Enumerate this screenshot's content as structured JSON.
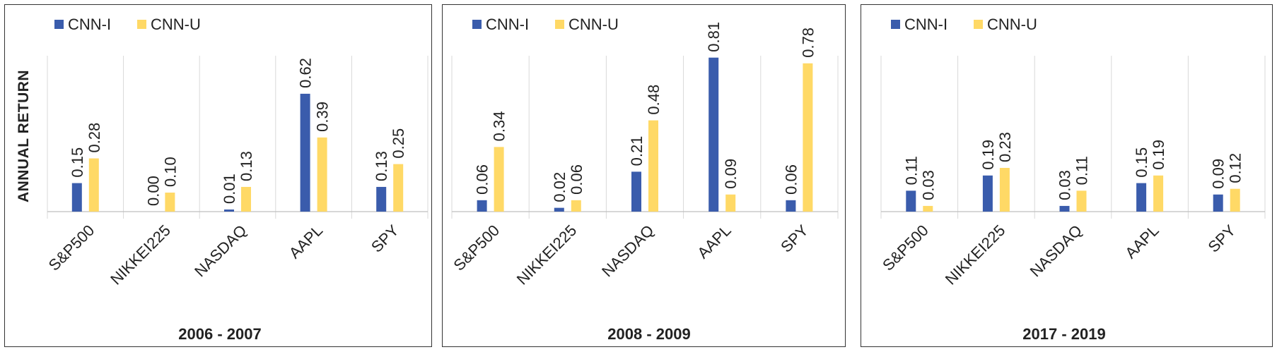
{
  "colors": {
    "cnn_i": "#3A5CAC",
    "cnn_u": "#FFD966",
    "grid": "#D9D9D9",
    "axis": "#BFBFBF"
  },
  "chart_data": [
    {
      "type": "bar",
      "title": "2006 - 2007",
      "ylabel": "ANNUAL RETURN",
      "categories": [
        "S&P500",
        "NIKKEI225",
        "NASDAQ",
        "AAPL",
        "SPY"
      ],
      "series": [
        {
          "name": "CNN-I",
          "values": [
            0.15,
            0.0,
            0.01,
            0.62,
            0.13
          ],
          "labels": [
            "0.15",
            "0.00",
            "0.01",
            "0.62",
            "0.13"
          ]
        },
        {
          "name": "CNN-U",
          "values": [
            0.28,
            0.1,
            0.13,
            0.39,
            0.25
          ],
          "labels": [
            "0.28",
            "0.10",
            "0.13",
            "0.39",
            "0.25"
          ]
        }
      ],
      "ylim": [
        0,
        0.82
      ],
      "legend": "top-left",
      "grid": "vertical"
    },
    {
      "type": "bar",
      "title": "2008 - 2009",
      "ylabel": "",
      "categories": [
        "S&P500",
        "NIKKEI225",
        "NASDAQ",
        "AAPL",
        "SPY"
      ],
      "series": [
        {
          "name": "CNN-I",
          "values": [
            0.06,
            0.02,
            0.21,
            0.81,
            0.06
          ],
          "labels": [
            "0.06",
            "0.02",
            "0.21",
            "0.81",
            "0.06"
          ]
        },
        {
          "name": "CNN-U",
          "values": [
            0.34,
            0.06,
            0.48,
            0.09,
            0.78
          ],
          "labels": [
            "0.34",
            "0.06",
            "0.48",
            "0.09",
            "0.78"
          ]
        }
      ],
      "ylim": [
        0,
        0.82
      ],
      "legend": "top-left",
      "grid": "vertical"
    },
    {
      "type": "bar",
      "title": "2017 - 2019",
      "ylabel": "",
      "categories": [
        "S&P500",
        "NIKKEI225",
        "NASDAQ",
        "AAPL",
        "SPY"
      ],
      "series": [
        {
          "name": "CNN-I",
          "values": [
            0.11,
            0.19,
            0.03,
            0.15,
            0.09
          ],
          "labels": [
            "0.11",
            "0.19",
            "0.03",
            "0.15",
            "0.09"
          ]
        },
        {
          "name": "CNN-U",
          "values": [
            0.03,
            0.23,
            0.11,
            0.19,
            0.12
          ],
          "labels": [
            "0.03",
            "0.23",
            "0.11",
            "0.19",
            "0.12"
          ]
        }
      ],
      "ylim": [
        0,
        0.82
      ],
      "legend": "top-left",
      "grid": "vertical"
    }
  ]
}
